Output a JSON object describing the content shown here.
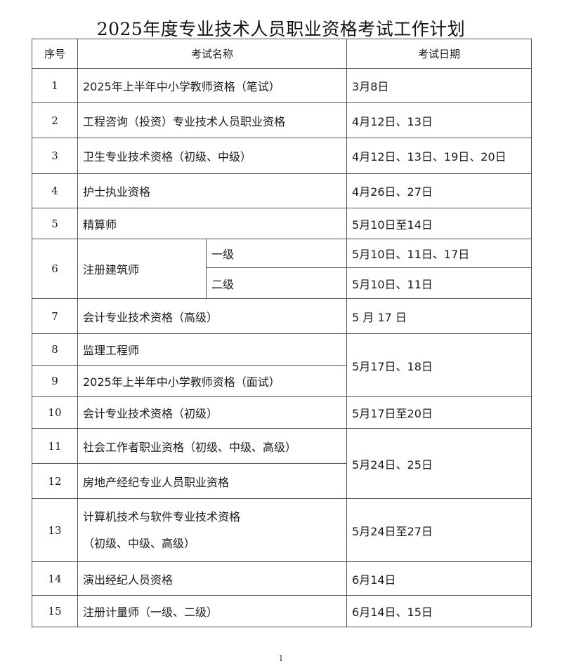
{
  "title": "2025年度专业技术人员职业资格考试工作计划",
  "header": {
    "seq": "序号",
    "name": "考试名称",
    "date": "考试日期"
  },
  "rows": [
    {
      "seq": "1",
      "name": "2025年上半年中小学教师资格（笔试）",
      "date": "3月8日"
    },
    {
      "seq": "2",
      "name": "工程咨询（投资）专业技术人员职业资格",
      "date": "4月12日、13日"
    },
    {
      "seq": "3",
      "name": "卫生专业技术资格（初级、中级）",
      "date": "4月12日、13日、19日、20日"
    },
    {
      "seq": "4",
      "name": "护士执业资格",
      "date": "4月26日、27日"
    },
    {
      "seq": "5",
      "name": "精算师",
      "date": "5月10日至14日"
    },
    {
      "seq": "6",
      "name": "注册建筑师",
      "sub": [
        {
          "level": "一级",
          "date": "5月10日、11日、17日"
        },
        {
          "level": "二级",
          "date": "5月10日、11日"
        }
      ]
    },
    {
      "seq": "7",
      "name": "会计专业技术资格（高级）",
      "date": "5 月 17 日"
    },
    {
      "seq": "8",
      "name": "监理工程师",
      "date": "5月17日、18日"
    },
    {
      "seq": "9",
      "name": "2025年上半年中小学教师资格（面试）"
    },
    {
      "seq": "10",
      "name": "会计专业技术资格（初级）",
      "date": "5月17日至20日"
    },
    {
      "seq": "11",
      "name": "社会工作者职业资格（初级、中级、高级）",
      "date": "5月24日、25日"
    },
    {
      "seq": "12",
      "name": "房地产经纪专业人员职业资格"
    },
    {
      "seq": "13",
      "name": "计算机技术与软件专业技术资格",
      "name_line2": "（初级、中级、高级）",
      "date": "5月24日至27日"
    },
    {
      "seq": "14",
      "name": "演出经纪人员资格",
      "date": "6月14日"
    },
    {
      "seq": "15",
      "name": "注册计量师（一级、二级）",
      "date": "6月14日、15日"
    }
  ],
  "page_number": "1"
}
